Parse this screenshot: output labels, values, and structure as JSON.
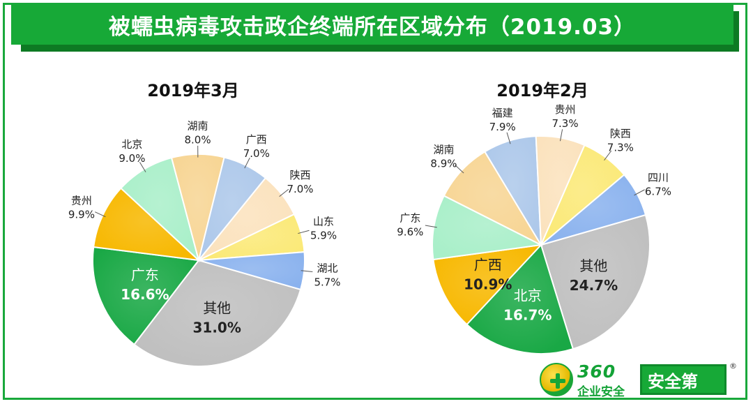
{
  "header": {
    "title": "被蠕虫病毒攻击政企终端所在区域分布（2019.03）"
  },
  "chart_data": [
    {
      "type": "pie",
      "title": "2019年3月",
      "slices": [
        {
          "label": "其他",
          "value": 31.0,
          "display": "31.0%",
          "color": "#bfbfbf",
          "inside": true
        },
        {
          "label": "广东",
          "value": 16.6,
          "display": "16.6%",
          "color": "#19a845",
          "inside": true
        },
        {
          "label": "贵州",
          "value": 9.9,
          "display": "9.9%",
          "color": "#f7b800"
        },
        {
          "label": "北京",
          "value": 9.0,
          "display": "9.0%",
          "color": "#a9efc9"
        },
        {
          "label": "湖南",
          "value": 8.0,
          "display": "8.0%",
          "color": "#f7d594"
        },
        {
          "label": "广西",
          "value": 7.0,
          "display": "7.0%",
          "color": "#adc8ea"
        },
        {
          "label": "陕西",
          "value": 7.0,
          "display": "7.0%",
          "color": "#fbe2bd"
        },
        {
          "label": "山东",
          "value": 5.9,
          "display": "5.9%",
          "color": "#fbe977"
        },
        {
          "label": "湖北",
          "value": 5.7,
          "display": "5.7%",
          "color": "#8ab2ee"
        }
      ]
    },
    {
      "type": "pie",
      "title": "2019年2月",
      "slices": [
        {
          "label": "其他",
          "value": 24.7,
          "display": "24.7%",
          "color": "#bfbfbf",
          "inside": true
        },
        {
          "label": "北京",
          "value": 16.7,
          "display": "16.7%",
          "color": "#19a845",
          "inside": true
        },
        {
          "label": "广西",
          "value": 10.9,
          "display": "10.9%",
          "color": "#f7b800",
          "inside": true
        },
        {
          "label": "广东",
          "value": 9.6,
          "display": "9.6%",
          "color": "#a9efc9"
        },
        {
          "label": "湖南",
          "value": 8.9,
          "display": "8.9%",
          "color": "#f7d594"
        },
        {
          "label": "福建",
          "value": 7.9,
          "display": "7.9%",
          "color": "#adc8ea"
        },
        {
          "label": "贵州",
          "value": 7.3,
          "display": "7.3%",
          "color": "#fbe2bd"
        },
        {
          "label": "陕西",
          "value": 7.3,
          "display": "7.3%",
          "color": "#fbe977"
        },
        {
          "label": "四川",
          "value": 6.7,
          "display": "6.7%",
          "color": "#8ab2ee"
        }
      ]
    }
  ],
  "logo": {
    "number": "360",
    "subtitle": "企业安全",
    "badge": "安全第",
    "reg": "®"
  }
}
